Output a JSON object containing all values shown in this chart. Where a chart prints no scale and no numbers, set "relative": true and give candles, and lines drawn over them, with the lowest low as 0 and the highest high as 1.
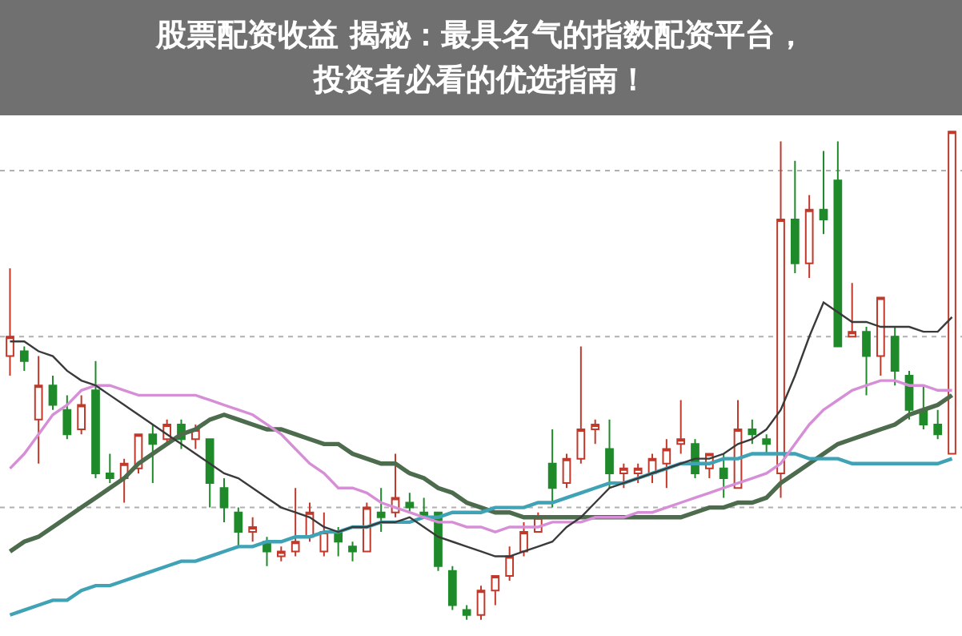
{
  "chart_data": {
    "type": "candlestick",
    "title": "股票配资收益 揭秘：最具名气的指数配资平台，投资者必看的优选指南！",
    "relative": true,
    "ref_lines": [
      {
        "axis": "y",
        "value": 0.92,
        "color": "#b0b0b0",
        "line_style": "dotted"
      },
      {
        "axis": "y",
        "value": 0.58,
        "color": "#b0b0b0",
        "line_style": "dotted"
      },
      {
        "axis": "y",
        "value": 0.23,
        "color": "#b0b0b0",
        "line_style": "dotted"
      }
    ],
    "categories": [
      null,
      null,
      null,
      null,
      null,
      null,
      null,
      null,
      null,
      null,
      null,
      null,
      null,
      null,
      null,
      null,
      null,
      null,
      null,
      null,
      null,
      null,
      null,
      null,
      null,
      null,
      null,
      null,
      null,
      null,
      null,
      null,
      null,
      null,
      null,
      null,
      null,
      null,
      null,
      null,
      null,
      null,
      null,
      null,
      null,
      null,
      null,
      null,
      null,
      null,
      null,
      null,
      null,
      null,
      null,
      null,
      null,
      null,
      null,
      null,
      null,
      null,
      null,
      null,
      null,
      null,
      null
    ],
    "ohlc": [
      [
        0.54,
        0.72,
        0.5,
        0.58
      ],
      [
        0.55,
        0.56,
        0.51,
        0.53
      ],
      [
        0.41,
        0.54,
        0.32,
        0.48
      ],
      [
        0.48,
        0.5,
        0.43,
        0.44
      ],
      [
        0.43,
        0.46,
        0.37,
        0.38
      ],
      [
        0.39,
        0.46,
        0.38,
        0.44
      ],
      [
        0.47,
        0.53,
        0.29,
        0.3
      ],
      [
        0.3,
        0.34,
        0.28,
        0.29
      ],
      [
        0.29,
        0.33,
        0.24,
        0.32
      ],
      [
        0.31,
        0.38,
        0.3,
        0.38
      ],
      [
        0.38,
        0.4,
        0.28,
        0.36
      ],
      [
        0.37,
        0.41,
        0.36,
        0.4
      ],
      [
        0.4,
        0.41,
        0.35,
        0.37
      ],
      [
        0.37,
        0.4,
        0.35,
        0.39
      ],
      [
        0.37,
        0.37,
        0.23,
        0.28
      ],
      [
        0.27,
        0.29,
        0.2,
        0.23
      ],
      [
        0.22,
        0.23,
        0.15,
        0.18
      ],
      [
        0.18,
        0.21,
        0.16,
        0.19
      ],
      [
        0.16,
        0.17,
        0.11,
        0.14
      ],
      [
        0.13,
        0.15,
        0.12,
        0.14
      ],
      [
        0.14,
        0.27,
        0.13,
        0.16
      ],
      [
        0.17,
        0.24,
        0.16,
        0.22
      ],
      [
        0.14,
        0.22,
        0.13,
        0.18
      ],
      [
        0.18,
        0.19,
        0.13,
        0.16
      ],
      [
        0.15,
        0.16,
        0.12,
        0.14
      ],
      [
        0.14,
        0.24,
        0.14,
        0.23
      ],
      [
        0.22,
        0.27,
        0.18,
        0.21
      ],
      [
        0.22,
        0.34,
        0.21,
        0.25
      ],
      [
        0.24,
        0.26,
        0.22,
        0.23
      ],
      [
        0.22,
        0.25,
        0.21,
        0.21
      ],
      [
        0.22,
        0.22,
        0.1,
        0.11
      ],
      [
        0.1,
        0.11,
        0.02,
        0.03
      ],
      [
        0.02,
        0.03,
        0,
        0.01
      ],
      [
        0.01,
        0.07,
        0,
        0.06
      ],
      [
        0.06,
        0.09,
        0.03,
        0.09
      ],
      [
        0.09,
        0.15,
        0.08,
        0.13
      ],
      [
        0.14,
        0.2,
        0.13,
        0.18
      ],
      [
        0.18,
        0.22,
        0.18,
        0.21
      ],
      [
        0.32,
        0.39,
        0.23,
        0.27
      ],
      [
        0.28,
        0.34,
        0.27,
        0.33
      ],
      [
        0.33,
        0.56,
        0.32,
        0.39
      ],
      [
        0.39,
        0.41,
        0.36,
        0.4
      ],
      [
        0.35,
        0.41,
        0.27,
        0.3
      ],
      [
        0.3,
        0.32,
        0.27,
        0.31
      ],
      [
        0.3,
        0.32,
        0.28,
        0.31
      ],
      [
        0.3,
        0.34,
        0.28,
        0.33
      ],
      [
        0.32,
        0.37,
        0.27,
        0.35
      ],
      [
        0.36,
        0.45,
        0.34,
        0.37
      ],
      [
        0.36,
        0.37,
        0.29,
        0.3
      ],
      [
        0.31,
        0.34,
        0.29,
        0.34
      ],
      [
        0.31,
        0.34,
        0.25,
        0.29
      ],
      [
        0.27,
        0.45,
        0.27,
        0.39
      ],
      [
        0.39,
        0.41,
        0.36,
        0.38
      ],
      [
        0.37,
        0.38,
        0.34,
        0.36
      ],
      [
        0.3,
        0.98,
        0.25,
        0.82
      ],
      [
        0.82,
        0.94,
        0.71,
        0.73
      ],
      [
        0.73,
        0.87,
        0.7,
        0.84
      ],
      [
        0.84,
        0.96,
        0.79,
        0.82
      ],
      [
        0.9,
        0.98,
        0.56,
        0.56
      ],
      [
        0.58,
        0.69,
        0.58,
        0.59
      ],
      [
        0.59,
        0.6,
        0.46,
        0.54
      ],
      [
        0.54,
        0.66,
        0.5,
        0.66
      ],
      [
        0.58,
        0.6,
        0.48,
        0.51
      ],
      [
        0.5,
        0.51,
        0.41,
        0.43
      ],
      [
        0.43,
        0.48,
        0.39,
        0.4
      ],
      [
        0.4,
        0.43,
        0.37,
        0.38
      ],
      [
        0.34,
        1,
        0.34,
        1
      ]
    ],
    "series": [
      {
        "type": "line",
        "color": "#4d6b4d",
        "values": [
          0.14,
          0.16,
          0.17,
          0.19,
          0.21,
          0.23,
          0.25,
          0.27,
          0.29,
          0.32,
          0.34,
          0.36,
          0.38,
          0.39,
          0.41,
          0.42,
          0.41,
          0.4,
          0.39,
          0.39,
          0.38,
          0.37,
          0.36,
          0.36,
          0.34,
          0.33,
          0.32,
          0.32,
          0.3,
          0.29,
          0.27,
          0.26,
          0.24,
          0.23,
          0.22,
          0.22,
          0.21,
          0.21,
          0.21,
          0.21,
          0.21,
          0.21,
          0.21,
          0.21,
          0.21,
          0.21,
          0.21,
          0.21,
          0.22,
          0.23,
          0.23,
          0.24,
          0.24,
          0.25,
          0.28,
          0.3,
          0.32,
          0.34,
          0.36,
          0.37,
          0.38,
          0.39,
          0.4,
          0.42,
          0.43,
          0.44,
          0.46
        ]
      },
      {
        "type": "line",
        "color": "#3fa3b5",
        "values": [
          0.01,
          0.02,
          0.03,
          0.04,
          0.04,
          0.06,
          0.07,
          0.07,
          0.08,
          0.09,
          0.1,
          0.11,
          0.12,
          0.12,
          0.13,
          0.14,
          0.15,
          0.15,
          0.16,
          0.16,
          0.17,
          0.17,
          0.18,
          0.18,
          0.19,
          0.19,
          0.2,
          0.2,
          0.2,
          0.21,
          0.21,
          0.22,
          0.22,
          0.22,
          0.23,
          0.23,
          0.23,
          0.24,
          0.24,
          0.25,
          0.26,
          0.27,
          0.28,
          0.28,
          0.29,
          0.3,
          0.31,
          0.32,
          0.32,
          0.32,
          0.33,
          0.33,
          0.34,
          0.34,
          0.34,
          0.34,
          0.33,
          0.33,
          0.33,
          0.32,
          0.32,
          0.32,
          0.32,
          0.32,
          0.32,
          0.32,
          0.33
        ]
      },
      {
        "type": "line",
        "color": "#d68fd6",
        "values": [
          0.31,
          0.34,
          0.38,
          0.42,
          0.44,
          0.47,
          0.48,
          0.48,
          0.47,
          0.46,
          0.46,
          0.46,
          0.46,
          0.46,
          0.45,
          0.44,
          0.43,
          0.42,
          0.4,
          0.38,
          0.35,
          0.32,
          0.3,
          0.27,
          0.27,
          0.26,
          0.24,
          0.23,
          0.22,
          0.21,
          0.2,
          0.2,
          0.19,
          0.19,
          0.18,
          0.19,
          0.19,
          0.19,
          0.2,
          0.2,
          0.2,
          0.21,
          0.21,
          0.21,
          0.22,
          0.22,
          0.23,
          0.24,
          0.25,
          0.26,
          0.27,
          0.28,
          0.29,
          0.3,
          0.32,
          0.36,
          0.4,
          0.43,
          0.45,
          0.47,
          0.48,
          0.49,
          0.49,
          0.48,
          0.48,
          0.47,
          0.47
        ]
      },
      {
        "type": "line",
        "color": "#3a3a3a",
        "values": [
          0.57,
          0.57,
          0.55,
          0.54,
          0.51,
          0.49,
          0.48,
          0.46,
          0.44,
          0.42,
          0.4,
          0.38,
          0.36,
          0.34,
          0.32,
          0.3,
          0.29,
          0.27,
          0.25,
          0.23,
          0.22,
          0.21,
          0.19,
          0.18,
          0.19,
          0.19,
          0.2,
          0.2,
          0.21,
          0.19,
          0.17,
          0.16,
          0.15,
          0.14,
          0.13,
          0.13,
          0.14,
          0.15,
          0.16,
          0.19,
          0.21,
          0.24,
          0.27,
          0.28,
          0.29,
          0.3,
          0.31,
          0.32,
          0.33,
          0.33,
          0.34,
          0.36,
          0.37,
          0.39,
          0.43,
          0.5,
          0.58,
          0.65,
          0.63,
          0.61,
          0.61,
          0.6,
          0.6,
          0.6,
          0.59,
          0.59,
          0.62
        ]
      }
    ]
  }
}
